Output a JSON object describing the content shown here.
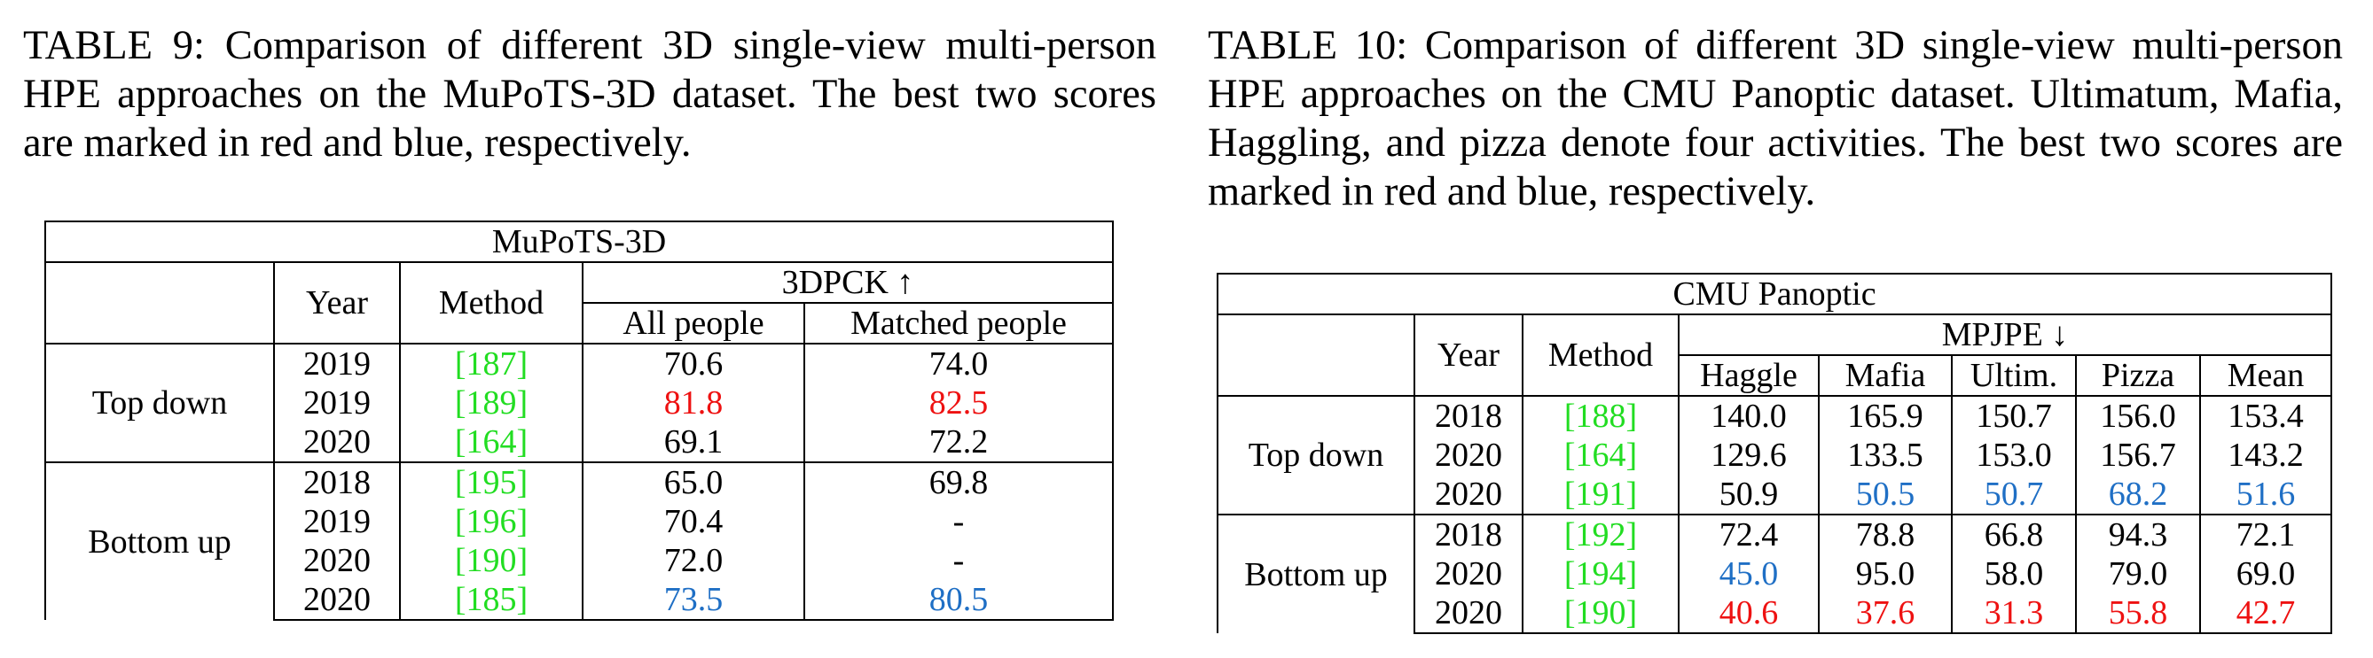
{
  "table9": {
    "caption": "TABLE 9: Comparison of different 3D single-view multi-person HPE approaches on the MuPoTS-3D dataset. The best two scores are marked in red and blue, respectively.",
    "dataset_header": "MuPoTS-3D",
    "col_year": "Year",
    "col_method": "Method",
    "metric_header": "3DPCK ↑",
    "sub_all": "All people",
    "sub_matched": "Matched people",
    "groups": [
      {
        "name": "Top down",
        "rows": [
          {
            "year": "2019",
            "ref": "[187]",
            "all": "70.6",
            "matched": "74.0",
            "all_color": "",
            "matched_color": ""
          },
          {
            "year": "2019",
            "ref": "[189]",
            "all": "81.8",
            "matched": "82.5",
            "all_color": "red",
            "matched_color": "red"
          },
          {
            "year": "2020",
            "ref": "[164]",
            "all": "69.1",
            "matched": "72.2",
            "all_color": "",
            "matched_color": ""
          }
        ]
      },
      {
        "name": "Bottom up",
        "rows": [
          {
            "year": "2018",
            "ref": "[195]",
            "all": "65.0",
            "matched": "69.8",
            "all_color": "",
            "matched_color": ""
          },
          {
            "year": "2019",
            "ref": "[196]",
            "all": "70.4",
            "matched": "-",
            "all_color": "",
            "matched_color": ""
          },
          {
            "year": "2020",
            "ref": "[190]",
            "all": "72.0",
            "matched": "-",
            "all_color": "",
            "matched_color": ""
          },
          {
            "year": "2020",
            "ref": "[185]",
            "all": "73.5",
            "matched": "80.5",
            "all_color": "blue",
            "matched_color": "blue"
          }
        ]
      }
    ]
  },
  "table10": {
    "caption": "TABLE 10: Comparison of different 3D single-view multi-person HPE approaches on the CMU Panoptic dataset. Ultimatum, Mafia, Haggling, and pizza denote four activities. The best two scores are marked in red and blue, respectively.",
    "dataset_header": "CMU Panoptic",
    "col_year": "Year",
    "col_method": "Method",
    "metric_header": "MPJPE ↓",
    "sub_cols": [
      "Haggle",
      "Mafia",
      "Ultim.",
      "Pizza",
      "Mean"
    ],
    "groups": [
      {
        "name": "Top down",
        "rows": [
          {
            "year": "2018",
            "ref": "[188]",
            "vals": [
              "140.0",
              "165.9",
              "150.7",
              "156.0",
              "153.4"
            ],
            "colors": [
              "",
              "",
              "",
              "",
              ""
            ]
          },
          {
            "year": "2020",
            "ref": "[164]",
            "vals": [
              "129.6",
              "133.5",
              "153.0",
              "156.7",
              "143.2"
            ],
            "colors": [
              "",
              "",
              "",
              "",
              ""
            ]
          },
          {
            "year": "2020",
            "ref": "[191]",
            "vals": [
              "50.9",
              "50.5",
              "50.7",
              "68.2",
              "51.6"
            ],
            "colors": [
              "",
              "blue",
              "blue",
              "blue",
              "blue"
            ]
          }
        ]
      },
      {
        "name": "Bottom up",
        "rows": [
          {
            "year": "2018",
            "ref": "[192]",
            "vals": [
              "72.4",
              "78.8",
              "66.8",
              "94.3",
              "72.1"
            ],
            "colors": [
              "",
              "",
              "",
              "",
              ""
            ]
          },
          {
            "year": "2020",
            "ref": "[194]",
            "vals": [
              "45.0",
              "95.0",
              "58.0",
              "79.0",
              "69.0"
            ],
            "colors": [
              "blue",
              "",
              "",
              "",
              ""
            ]
          },
          {
            "year": "2020",
            "ref": "[190]",
            "vals": [
              "40.6",
              "37.6",
              "31.3",
              "55.8",
              "42.7"
            ],
            "colors": [
              "red",
              "red",
              "red",
              "red",
              "red"
            ]
          }
        ]
      }
    ]
  },
  "colors": {
    "red": "#ee1111",
    "blue": "#1f6fc5",
    "green": "#22dd22"
  }
}
